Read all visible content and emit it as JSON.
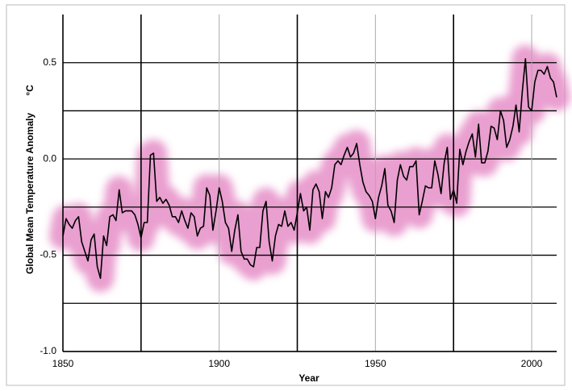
{
  "chart_data": {
    "type": "line",
    "y_label": "Global Mean Temperature Anomaly",
    "y_unit": "°C",
    "x_label": "Year",
    "xlim": [
      1850,
      2008
    ],
    "xticks": [
      1850,
      1900,
      1950,
      2000
    ],
    "ylim": [
      -1,
      0.75
    ],
    "yticks": [
      {
        "value": -1,
        "label": "-1.0"
      },
      -0.5,
      {
        "value": 0,
        "label": "0.0"
      },
      0.5
    ],
    "grid": true,
    "band_color": "#e27fc0",
    "x": [
      1850,
      1851,
      1852,
      1853,
      1854,
      1855,
      1856,
      1857,
      1858,
      1859,
      1860,
      1861,
      1862,
      1863,
      1864,
      1865,
      1866,
      1867,
      1868,
      1869,
      1870,
      1871,
      1872,
      1873,
      1874,
      1875,
      1876,
      1877,
      1878,
      1879,
      1880,
      1881,
      1882,
      1883,
      1884,
      1885,
      1886,
      1887,
      1888,
      1889,
      1890,
      1891,
      1892,
      1893,
      1894,
      1895,
      1896,
      1897,
      1898,
      1899,
      1900,
      1901,
      1902,
      1903,
      1904,
      1905,
      1906,
      1907,
      1908,
      1909,
      1910,
      1911,
      1912,
      1913,
      1914,
      1915,
      1916,
      1917,
      1918,
      1919,
      1920,
      1921,
      1922,
      1923,
      1924,
      1925,
      1926,
      1927,
      1928,
      1929,
      1930,
      1931,
      1932,
      1933,
      1934,
      1935,
      1936,
      1937,
      1938,
      1939,
      1940,
      1941,
      1942,
      1943,
      1944,
      1945,
      1946,
      1947,
      1948,
      1949,
      1950,
      1951,
      1952,
      1953,
      1954,
      1955,
      1956,
      1957,
      1958,
      1959,
      1960,
      1961,
      1962,
      1963,
      1964,
      1965,
      1966,
      1967,
      1968,
      1969,
      1970,
      1971,
      1972,
      1973,
      1974,
      1975,
      1976,
      1977,
      1978,
      1979,
      1980,
      1981,
      1982,
      1983,
      1984,
      1985,
      1986,
      1987,
      1988,
      1989,
      1990,
      1991,
      1992,
      1993,
      1994,
      1995,
      1996,
      1997,
      1998,
      1999,
      2000,
      2001,
      2002,
      2003,
      2004,
      2005,
      2006,
      2007,
      2008
    ],
    "series": [
      {
        "color": "#000000",
        "values": [
          -0.4,
          -0.31,
          -0.34,
          -0.36,
          -0.32,
          -0.3,
          -0.43,
          -0.48,
          -0.53,
          -0.42,
          -0.39,
          -0.56,
          -0.62,
          -0.4,
          -0.45,
          -0.3,
          -0.29,
          -0.32,
          -0.16,
          -0.28,
          -0.27,
          -0.27,
          -0.27,
          -0.29,
          -0.34,
          -0.41,
          -0.33,
          -0.33,
          0.02,
          0.03,
          -0.22,
          -0.2,
          -0.23,
          -0.21,
          -0.24,
          -0.3,
          -0.3,
          -0.33,
          -0.27,
          -0.32,
          -0.36,
          -0.28,
          -0.3,
          -0.4,
          -0.36,
          -0.35,
          -0.15,
          -0.19,
          -0.37,
          -0.27,
          -0.15,
          -0.22,
          -0.33,
          -0.36,
          -0.48,
          -0.37,
          -0.29,
          -0.48,
          -0.52,
          -0.52,
          -0.55,
          -0.56,
          -0.46,
          -0.46,
          -0.27,
          -0.22,
          -0.43,
          -0.53,
          -0.4,
          -0.34,
          -0.35,
          -0.27,
          -0.35,
          -0.33,
          -0.37,
          -0.28,
          -0.18,
          -0.27,
          -0.25,
          -0.37,
          -0.16,
          -0.13,
          -0.17,
          -0.31,
          -0.17,
          -0.2,
          -0.15,
          -0.03,
          -0.01,
          -0.03,
          0.02,
          0.06,
          0.01,
          0.03,
          0.08,
          -0.03,
          -0.12,
          -0.17,
          -0.19,
          -0.22,
          -0.31,
          -0.2,
          -0.14,
          -0.05,
          -0.24,
          -0.27,
          -0.33,
          -0.11,
          -0.03,
          -0.09,
          -0.11,
          -0.04,
          -0.04,
          -0.01,
          -0.29,
          -0.22,
          -0.14,
          -0.15,
          -0.15,
          -0.01,
          -0.08,
          -0.18,
          -0.02,
          0.06,
          -0.21,
          -0.16,
          -0.23,
          0.05,
          -0.03,
          0.04,
          0.09,
          0.13,
          0.01,
          0.18,
          -0.02,
          -0.02,
          0.04,
          0.17,
          0.16,
          0.1,
          0.25,
          0.2,
          0.06,
          0.1,
          0.17,
          0.28,
          0.14,
          0.35,
          0.52,
          0.27,
          0.25,
          0.4,
          0.46,
          0.46,
          0.44,
          0.48,
          0.42,
          0.4,
          0.32
        ]
      }
    ]
  }
}
